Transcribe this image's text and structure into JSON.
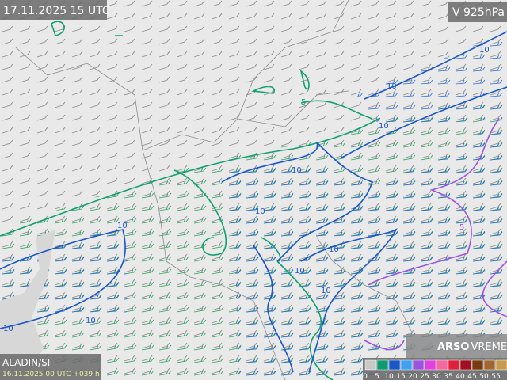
{
  "header": {
    "time": "17.11.2025 15 UTC",
    "level": "V 925hPa"
  },
  "footer": {
    "model": "ALADIN/SI",
    "run": "16.11.2025 00 UTC +039 h"
  },
  "logo": {
    "brand": "ARSO",
    "product": "VREME"
  },
  "legend": {
    "labels": [
      0,
      5,
      10,
      15,
      20,
      25,
      30,
      35,
      40,
      45,
      50,
      55
    ],
    "colors": [
      "#c8c8c8",
      "#0f9a73",
      "#1a56c8",
      "#3fa0f0",
      "#9a55e0",
      "#e040e0",
      "#f06aa0",
      "#e0203a",
      "#a01020",
      "#7a3a10",
      "#a06830",
      "#c89a50"
    ]
  },
  "contour_labels": [
    "10",
    "10",
    "10",
    "10",
    "5",
    "10",
    "10",
    "10",
    "10",
    "10",
    "10",
    "10",
    "5"
  ]
}
